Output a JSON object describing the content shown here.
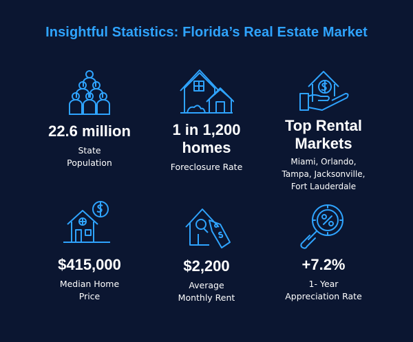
{
  "title": "Insightful Statistics: Florida’s Real Estate Market",
  "colors": {
    "background": "#0b1631",
    "accent": "#2fa4ff",
    "text": "#ffffff"
  },
  "stats": [
    {
      "icon": "population-icon",
      "value": "22.6 million",
      "label_line1": "State",
      "label_line2": "Population"
    },
    {
      "icon": "houses-icon",
      "value_line1": "1 in 1,200",
      "value_line2": "homes",
      "label_line1": "Foreclosure Rate"
    },
    {
      "icon": "house-hand-dollar-icon",
      "value_line1": "Top Rental",
      "value_line2": "Markets",
      "label_line1": "Miami, Orlando,",
      "label_line2": "Tampa, Jacksonville,",
      "label_line3": "Fort Lauderdale"
    },
    {
      "icon": "house-dollar-icon",
      "value": "$415,000",
      "label_line1": "Median Home",
      "label_line2": "Price"
    },
    {
      "icon": "house-price-tag-icon",
      "value": "$2,200",
      "label_line1": "Average",
      "label_line2": "Monthly Rent"
    },
    {
      "icon": "magnifier-percent-icon",
      "value": "+7.2%",
      "label_line1": "1- Year",
      "label_line2": "Appreciation Rate"
    }
  ]
}
